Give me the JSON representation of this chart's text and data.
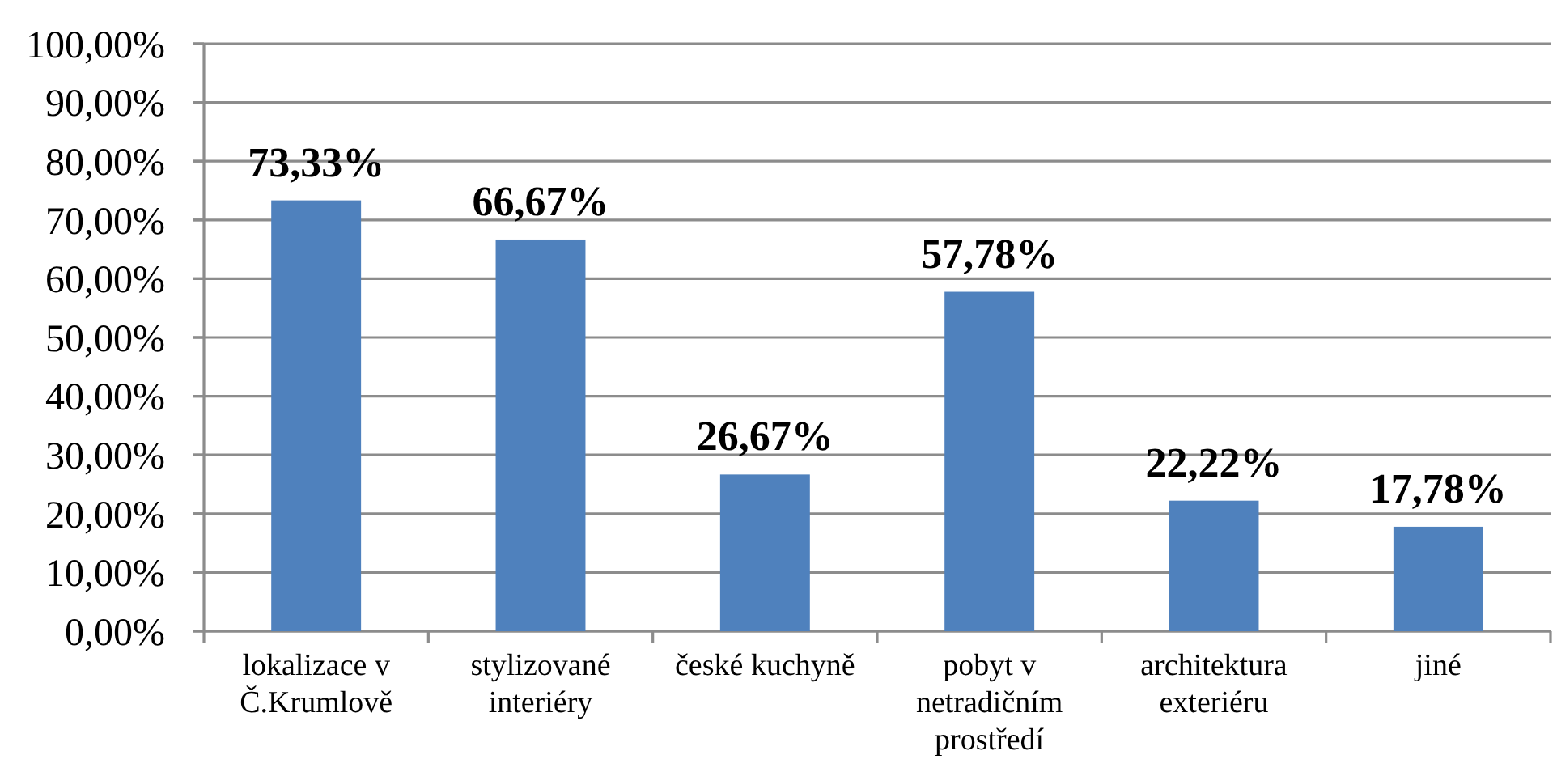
{
  "chart_data": {
    "type": "bar",
    "categories": [
      "lokalizace v Č.Krumlově",
      "stylizované interiéry",
      "české kuchyně",
      "pobyt v netradičním prostředí",
      "architektura exteriéru",
      "jiné"
    ],
    "values": [
      73.33,
      66.67,
      26.67,
      57.78,
      22.22,
      17.78
    ],
    "value_labels": [
      "73,33%",
      "66,67%",
      "26,67%",
      "57,78%",
      "22,22%",
      "17,78%"
    ],
    "color": "#4f81bd",
    "ylim": [
      0,
      100
    ],
    "yticks": [
      {
        "value": 0,
        "label": "0,00%"
      },
      {
        "value": 10,
        "label": "10,00%"
      },
      {
        "value": 20,
        "label": "20,00%"
      },
      {
        "value": 30,
        "label": "30,00%"
      },
      {
        "value": 40,
        "label": "40,00%"
      },
      {
        "value": 50,
        "label": "50,00%"
      },
      {
        "value": 60,
        "label": "60,00%"
      },
      {
        "value": 70,
        "label": "70,00%"
      },
      {
        "value": 80,
        "label": "80,00%"
      },
      {
        "value": 90,
        "label": "90,00%"
      },
      {
        "value": 100,
        "label": "100,00%"
      }
    ],
    "grid": "y"
  }
}
